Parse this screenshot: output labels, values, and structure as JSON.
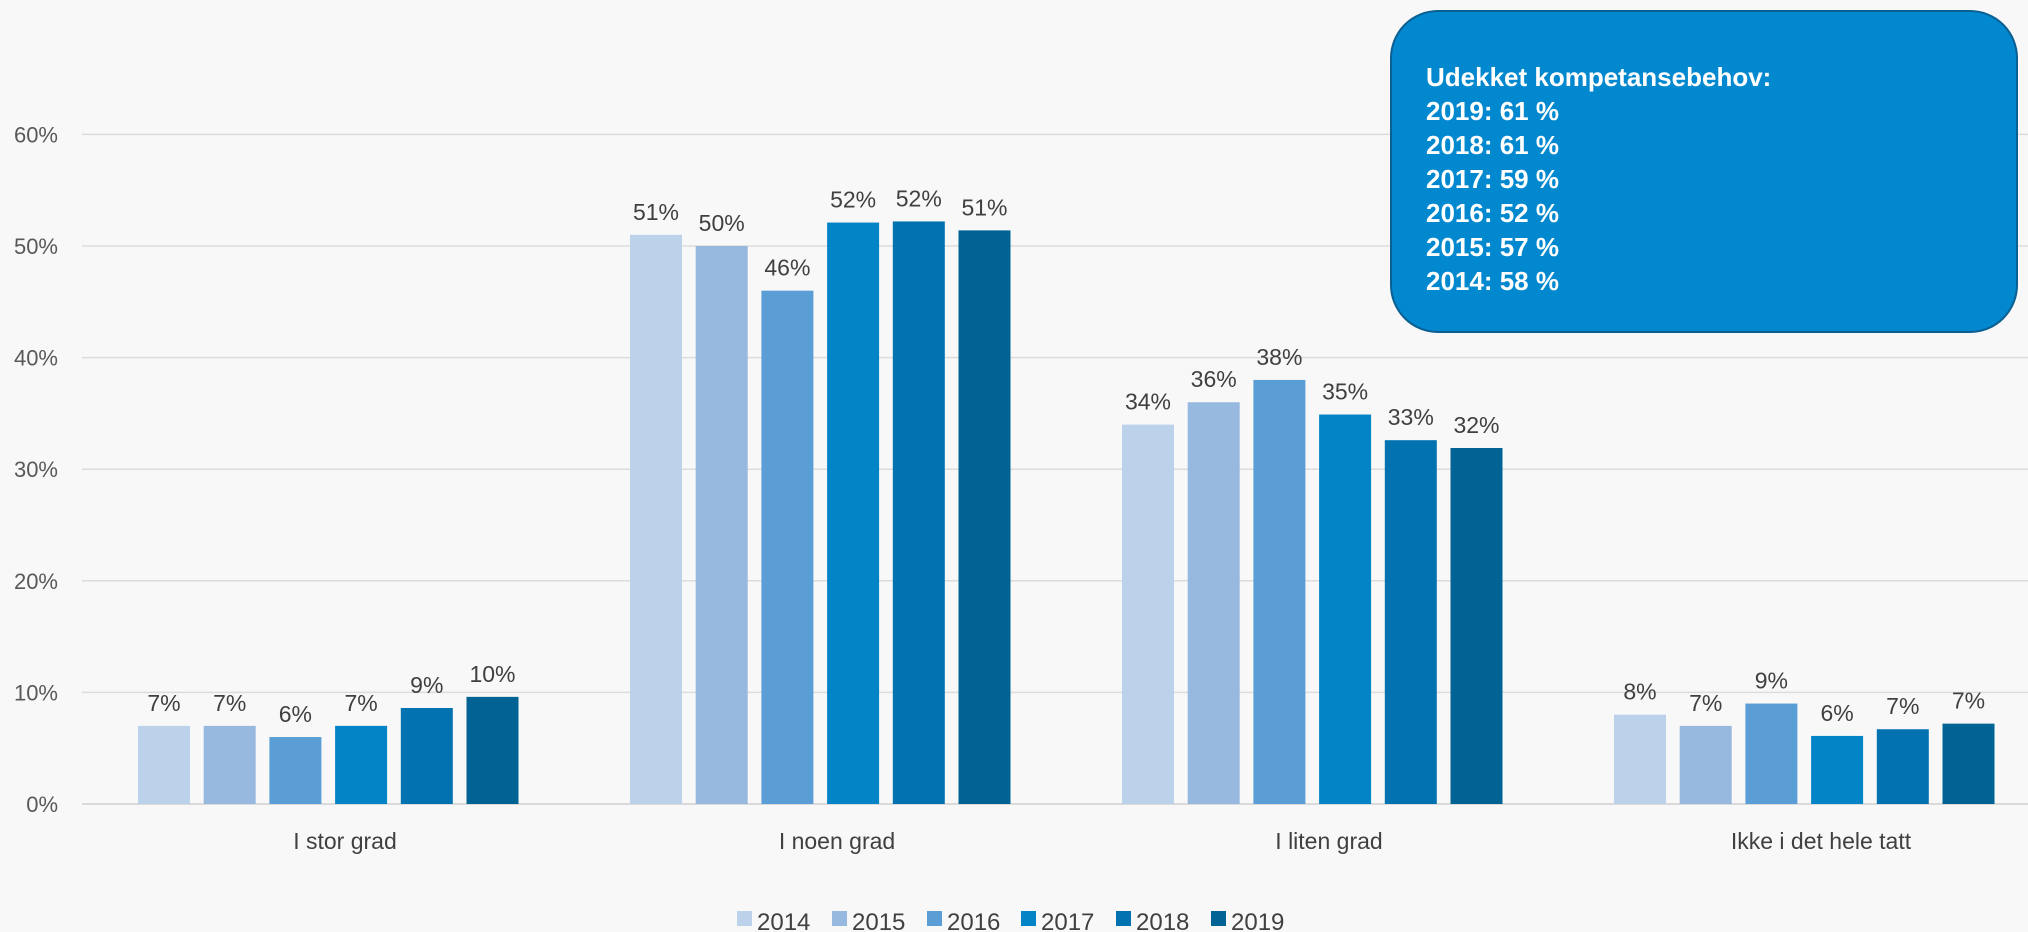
{
  "chart_data": {
    "type": "bar",
    "categories": [
      "I stor grad",
      "I noen grad",
      "I liten grad",
      "Ikke i det hele tatt"
    ],
    "series": [
      {
        "name": "2014",
        "color": "#bcd1ea",
        "values": [
          7,
          51,
          34,
          8
        ],
        "labels": [
          "7%",
          "51%",
          "34%",
          "8%"
        ]
      },
      {
        "name": "2015",
        "color": "#97b8df",
        "values": [
          7,
          50,
          36,
          7
        ],
        "labels": [
          "7%",
          "50%",
          "36%",
          "7%"
        ]
      },
      {
        "name": "2016",
        "color": "#5b9ed5",
        "values": [
          6,
          46,
          38,
          9
        ],
        "labels": [
          "6%",
          "46%",
          "38%",
          "9%"
        ]
      },
      {
        "name": "2017",
        "color": "#0284c7",
        "values": [
          7,
          52.1,
          34.9,
          6.1
        ],
        "labels": [
          "7%",
          "52%",
          "35%",
          "6%"
        ]
      },
      {
        "name": "2018",
        "color": "#0272b0",
        "values": [
          8.6,
          52.2,
          32.6,
          6.7
        ],
        "labels": [
          "9%",
          "52%",
          "33%",
          "7%"
        ]
      },
      {
        "name": "2019",
        "color": "#016394",
        "values": [
          9.6,
          51.4,
          31.9,
          7.2
        ],
        "labels": [
          "10%",
          "51%",
          "32%",
          "7%"
        ]
      }
    ],
    "yticks": [
      "0%",
      "10%",
      "20%",
      "30%",
      "40%",
      "50%",
      "60%"
    ],
    "ylim": [
      0,
      60
    ],
    "grid": true,
    "legend": "bottom"
  },
  "callout": {
    "title": "Udekket kompetansebehov:",
    "lines": [
      "2019: 61 %",
      "2018: 61 %",
      "2017: 59 %",
      "2016: 52 %",
      "2015: 57 %",
      "2014: 58 %"
    ]
  }
}
